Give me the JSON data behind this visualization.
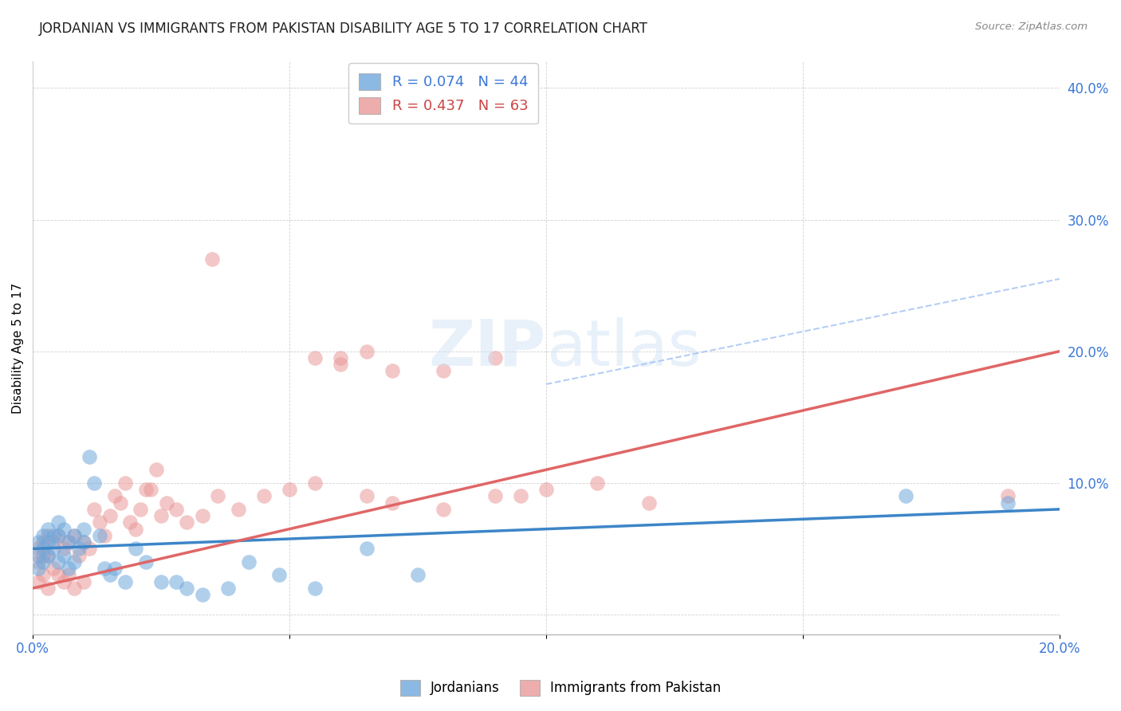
{
  "title": "JORDANIAN VS IMMIGRANTS FROM PAKISTAN DISABILITY AGE 5 TO 17 CORRELATION CHART",
  "source": "Source: ZipAtlas.com",
  "ylabel_label": "Disability Age 5 to 17",
  "xlim": [
    0.0,
    0.2
  ],
  "ylim": [
    -0.015,
    0.42
  ],
  "xticks": [
    0.0,
    0.05,
    0.1,
    0.15,
    0.2
  ],
  "xtick_labels": [
    "0.0%",
    "",
    "",
    "",
    "20.0%"
  ],
  "yticks": [
    0.0,
    0.1,
    0.2,
    0.3,
    0.4
  ],
  "ytick_labels": [
    "",
    "10.0%",
    "20.0%",
    "30.0%",
    "40.0%"
  ],
  "blue_color": "#6fa8dc",
  "pink_color": "#ea9999",
  "blue_line_color": "#3d85c8",
  "pink_line_color": "#e06666",
  "blue_dashed_color": "#a4c2f4",
  "R_blue": 0.074,
  "N_blue": 44,
  "R_pink": 0.437,
  "N_pink": 63,
  "legend_labels": [
    "Jordanians",
    "Immigrants from Pakistan"
  ],
  "blue_line_x": [
    0.0,
    0.2
  ],
  "blue_line_y": [
    0.05,
    0.08
  ],
  "pink_line_x": [
    0.0,
    0.2
  ],
  "pink_line_y": [
    0.02,
    0.2
  ],
  "dash_line_x": [
    0.1,
    0.2
  ],
  "dash_line_y": [
    0.175,
    0.255
  ],
  "blue_points_x": [
    0.001,
    0.001,
    0.001,
    0.002,
    0.002,
    0.002,
    0.003,
    0.003,
    0.003,
    0.004,
    0.004,
    0.005,
    0.005,
    0.005,
    0.006,
    0.006,
    0.007,
    0.007,
    0.008,
    0.008,
    0.009,
    0.01,
    0.01,
    0.011,
    0.012,
    0.013,
    0.014,
    0.015,
    0.016,
    0.018,
    0.02,
    0.022,
    0.025,
    0.028,
    0.03,
    0.033,
    0.038,
    0.042,
    0.048,
    0.055,
    0.065,
    0.075,
    0.17,
    0.19
  ],
  "blue_points_y": [
    0.055,
    0.045,
    0.035,
    0.06,
    0.05,
    0.04,
    0.065,
    0.055,
    0.045,
    0.06,
    0.05,
    0.07,
    0.06,
    0.04,
    0.065,
    0.045,
    0.055,
    0.035,
    0.06,
    0.04,
    0.05,
    0.065,
    0.055,
    0.12,
    0.1,
    0.06,
    0.035,
    0.03,
    0.035,
    0.025,
    0.05,
    0.04,
    0.025,
    0.025,
    0.02,
    0.015,
    0.02,
    0.04,
    0.03,
    0.02,
    0.05,
    0.03,
    0.09,
    0.085
  ],
  "pink_points_x": [
    0.001,
    0.001,
    0.001,
    0.002,
    0.002,
    0.002,
    0.003,
    0.003,
    0.003,
    0.004,
    0.004,
    0.005,
    0.005,
    0.006,
    0.006,
    0.007,
    0.007,
    0.008,
    0.008,
    0.009,
    0.01,
    0.01,
    0.011,
    0.012,
    0.013,
    0.014,
    0.015,
    0.016,
    0.017,
    0.018,
    0.019,
    0.02,
    0.021,
    0.022,
    0.023,
    0.024,
    0.025,
    0.026,
    0.028,
    0.03,
    0.033,
    0.036,
    0.04,
    0.045,
    0.05,
    0.055,
    0.06,
    0.065,
    0.07,
    0.08,
    0.09,
    0.1,
    0.11,
    0.12,
    0.055,
    0.06,
    0.065,
    0.07,
    0.08,
    0.09,
    0.095,
    0.035,
    0.19
  ],
  "pink_points_y": [
    0.05,
    0.04,
    0.025,
    0.055,
    0.045,
    0.03,
    0.06,
    0.045,
    0.02,
    0.055,
    0.035,
    0.06,
    0.03,
    0.05,
    0.025,
    0.055,
    0.03,
    0.06,
    0.02,
    0.045,
    0.055,
    0.025,
    0.05,
    0.08,
    0.07,
    0.06,
    0.075,
    0.09,
    0.085,
    0.1,
    0.07,
    0.065,
    0.08,
    0.095,
    0.095,
    0.11,
    0.075,
    0.085,
    0.08,
    0.07,
    0.075,
    0.09,
    0.08,
    0.09,
    0.095,
    0.1,
    0.195,
    0.09,
    0.085,
    0.08,
    0.09,
    0.095,
    0.1,
    0.085,
    0.195,
    0.19,
    0.2,
    0.185,
    0.185,
    0.195,
    0.09,
    0.27,
    0.09
  ]
}
